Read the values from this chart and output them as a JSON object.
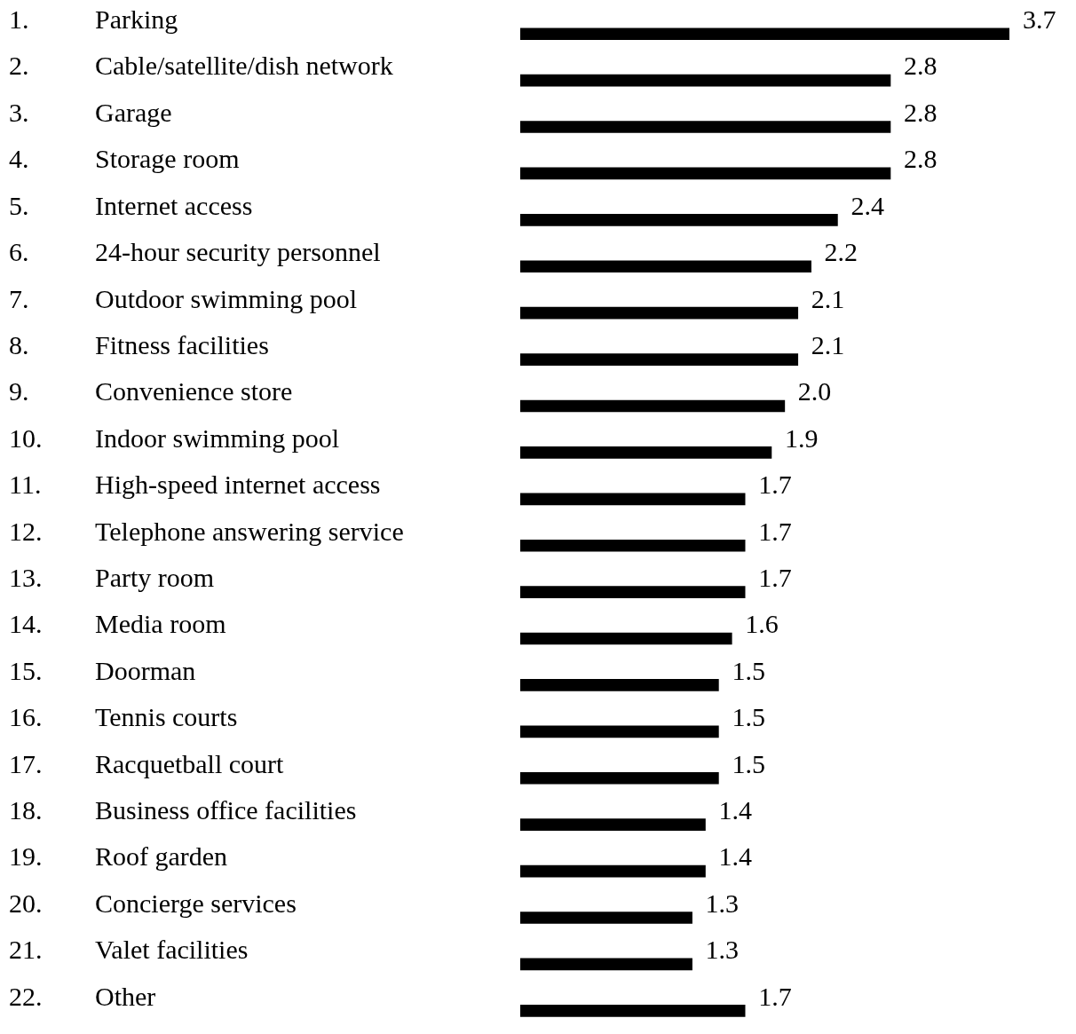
{
  "chart_data": {
    "type": "bar",
    "orientation": "horizontal",
    "legend": false,
    "color": "#000000",
    "categories": [
      "1. Parking",
      "2. Cable/satellite/dish network",
      "3. Garage",
      "4. Storage room",
      "5. Internet access",
      "6. 24-hour security personnel",
      "7. Outdoor swimming pool",
      "8. Fitness facilities",
      "9. Convenience store",
      "10. Indoor swimming pool",
      "11. High-speed internet access",
      "12. Telephone answering service",
      "13. Party room",
      "14. Media room",
      "15. Doorman",
      "16. Tennis courts",
      "17. Racquetball court",
      "18. Business office facilities",
      "19. Roof garden",
      "20. Concierge services",
      "21. Valet facilities",
      "22. Other"
    ],
    "values": [
      3.7,
      2.8,
      2.8,
      2.8,
      2.4,
      2.2,
      2.1,
      2.1,
      2.0,
      1.9,
      1.7,
      1.7,
      1.7,
      1.6,
      1.5,
      1.5,
      1.5,
      1.4,
      1.4,
      1.3,
      1.3,
      1.7
    ],
    "value_labels": [
      "3.7",
      "2.8",
      "2.8",
      "2.8",
      "2.4",
      "2.2",
      "2.1",
      "2.1",
      "2.0",
      "1.9",
      "1.7",
      "1.7",
      "1.7",
      "1.6",
      "1.5",
      "1.5",
      "1.5",
      "1.4",
      "1.4",
      "1.3",
      "1.3",
      "1.7"
    ]
  }
}
